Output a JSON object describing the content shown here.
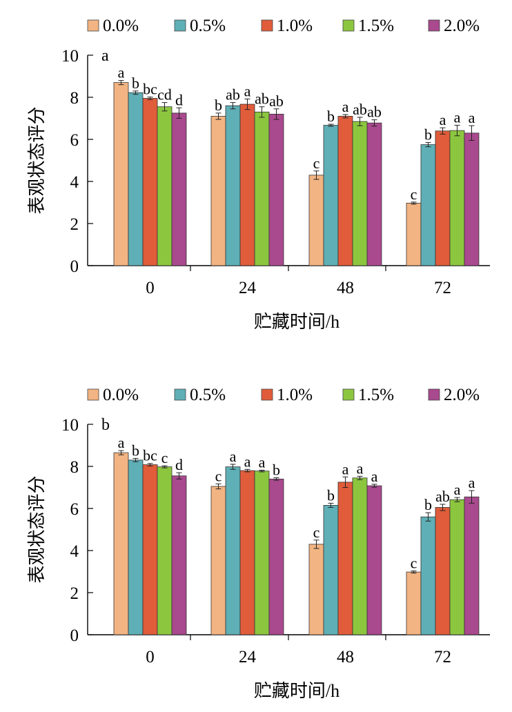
{
  "legend": [
    {
      "label": "0.0%",
      "color": "#F2B482"
    },
    {
      "label": "0.5%",
      "color": "#5FAFB6"
    },
    {
      "label": "1.0%",
      "color": "#E05C3A"
    },
    {
      "label": "1.5%",
      "color": "#8CC63F"
    },
    {
      "label": "2.0%",
      "color": "#A9498E"
    }
  ],
  "chart_data": [
    {
      "type": "bar",
      "panel_label": "a",
      "xlabel": "贮藏时间/h",
      "ylabel": "表观状态评分",
      "ylim": [
        0,
        10
      ],
      "yticks": [
        "0",
        "2",
        "4",
        "6",
        "8",
        "10"
      ],
      "categories": [
        "0",
        "24",
        "48",
        "72"
      ],
      "series": [
        {
          "name": "0.0%",
          "values": [
            8.7,
            7.1,
            4.3,
            2.97
          ],
          "errors": [
            0.1,
            0.15,
            0.2,
            0.05
          ],
          "letters": [
            "a",
            "b",
            "c",
            "c"
          ]
        },
        {
          "name": "0.5%",
          "values": [
            8.22,
            7.6,
            6.67,
            5.75
          ],
          "errors": [
            0.08,
            0.15,
            0.05,
            0.1
          ],
          "letters": [
            "b",
            "ab",
            "b",
            "b"
          ]
        },
        {
          "name": "1.0%",
          "values": [
            7.95,
            7.67,
            7.1,
            6.4
          ],
          "errors": [
            0.06,
            0.25,
            0.08,
            0.15
          ],
          "letters": [
            "bc",
            "a",
            "a",
            "a"
          ]
        },
        {
          "name": "1.5%",
          "values": [
            7.55,
            7.3,
            6.85,
            6.42
          ],
          "errors": [
            0.2,
            0.25,
            0.2,
            0.25
          ],
          "letters": [
            "cd",
            "ab",
            "ab",
            "a"
          ]
        },
        {
          "name": "2.0%",
          "values": [
            7.25,
            7.2,
            6.78,
            6.3
          ],
          "errors": [
            0.25,
            0.25,
            0.15,
            0.35
          ],
          "letters": [
            "d",
            "ab",
            "ab",
            "a"
          ]
        }
      ]
    },
    {
      "type": "bar",
      "panel_label": "b",
      "xlabel": "贮藏时间/h",
      "ylabel": "表观状态评分",
      "ylim": [
        0,
        10
      ],
      "yticks": [
        "0",
        "2",
        "4",
        "6",
        "8",
        "10"
      ],
      "categories": [
        "0",
        "24",
        "48",
        "72"
      ],
      "series": [
        {
          "name": "0.0%",
          "values": [
            8.65,
            7.05,
            4.3,
            2.98
          ],
          "errors": [
            0.1,
            0.12,
            0.2,
            0.05
          ],
          "letters": [
            "a",
            "c",
            "c",
            "c"
          ]
        },
        {
          "name": "0.5%",
          "values": [
            8.3,
            7.98,
            6.15,
            5.6
          ],
          "errors": [
            0.08,
            0.12,
            0.1,
            0.2
          ],
          "letters": [
            "b",
            "a",
            "b",
            "b"
          ]
        },
        {
          "name": "1.0%",
          "values": [
            8.08,
            7.8,
            7.25,
            6.05
          ],
          "errors": [
            0.06,
            0.06,
            0.25,
            0.15
          ],
          "letters": [
            "bc",
            "a",
            "a",
            "ab"
          ]
        },
        {
          "name": "1.5%",
          "values": [
            7.98,
            7.78,
            7.45,
            6.42
          ],
          "errors": [
            0.05,
            0.04,
            0.08,
            0.1
          ],
          "letters": [
            "c",
            "a",
            "a",
            "a"
          ]
        },
        {
          "name": "2.0%",
          "values": [
            7.55,
            7.4,
            7.08,
            6.55
          ],
          "errors": [
            0.15,
            0.06,
            0.07,
            0.3
          ],
          "letters": [
            "d",
            "b",
            "a",
            "a"
          ]
        }
      ]
    }
  ]
}
